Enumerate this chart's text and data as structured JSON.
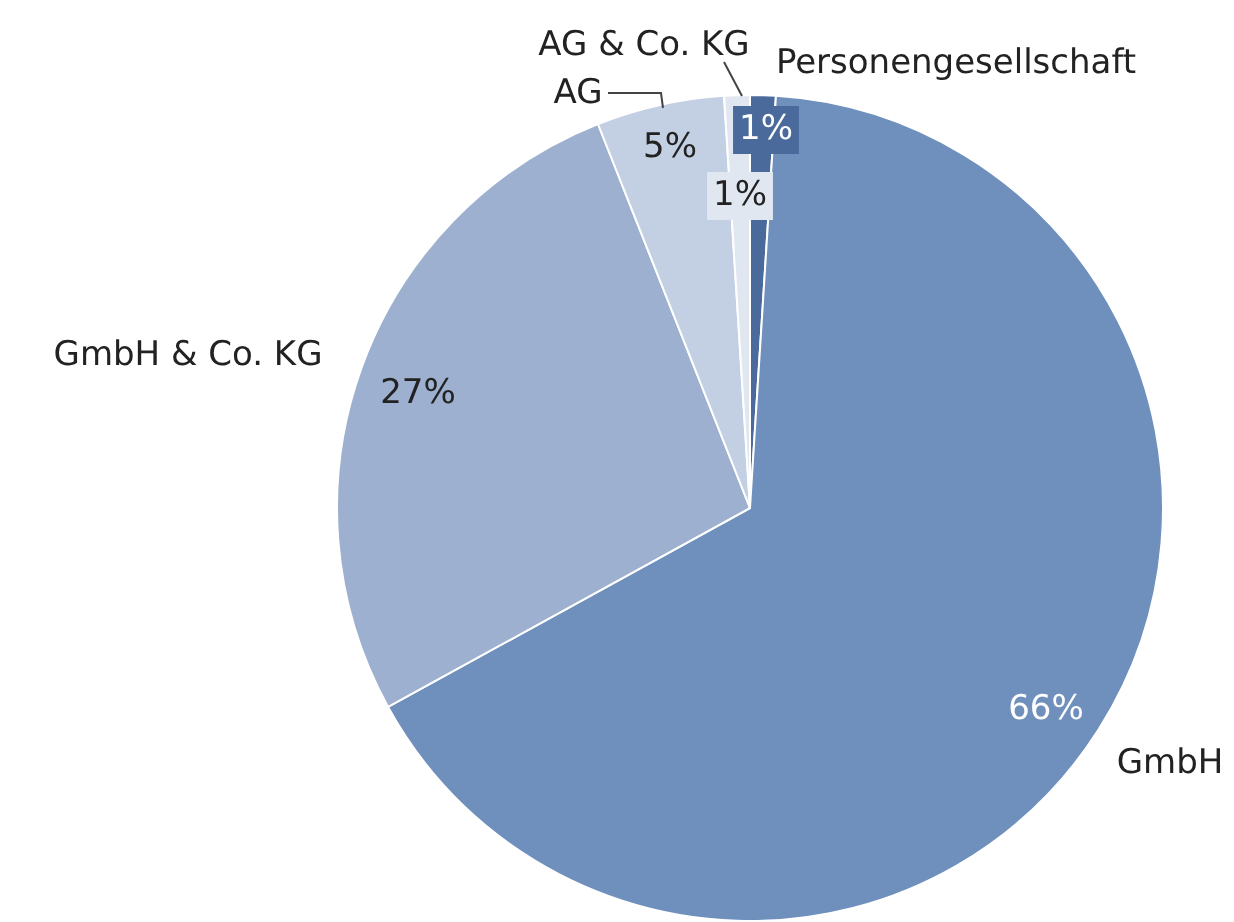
{
  "chart_data": {
    "type": "pie",
    "categories": [
      "Personengesellschaft",
      "GmbH",
      "GmbH & Co. KG",
      "AG",
      "AG & Co. KG"
    ],
    "values": [
      1,
      66,
      27,
      5,
      1
    ],
    "colors": [
      "#4a6a9c",
      "#6f8fbc",
      "#9db0cf",
      "#c3cfe2",
      "#e1e7f1"
    ],
    "value_labels": [
      "1%",
      "66%",
      "27%",
      "5%",
      "1%"
    ],
    "legend": false
  }
}
